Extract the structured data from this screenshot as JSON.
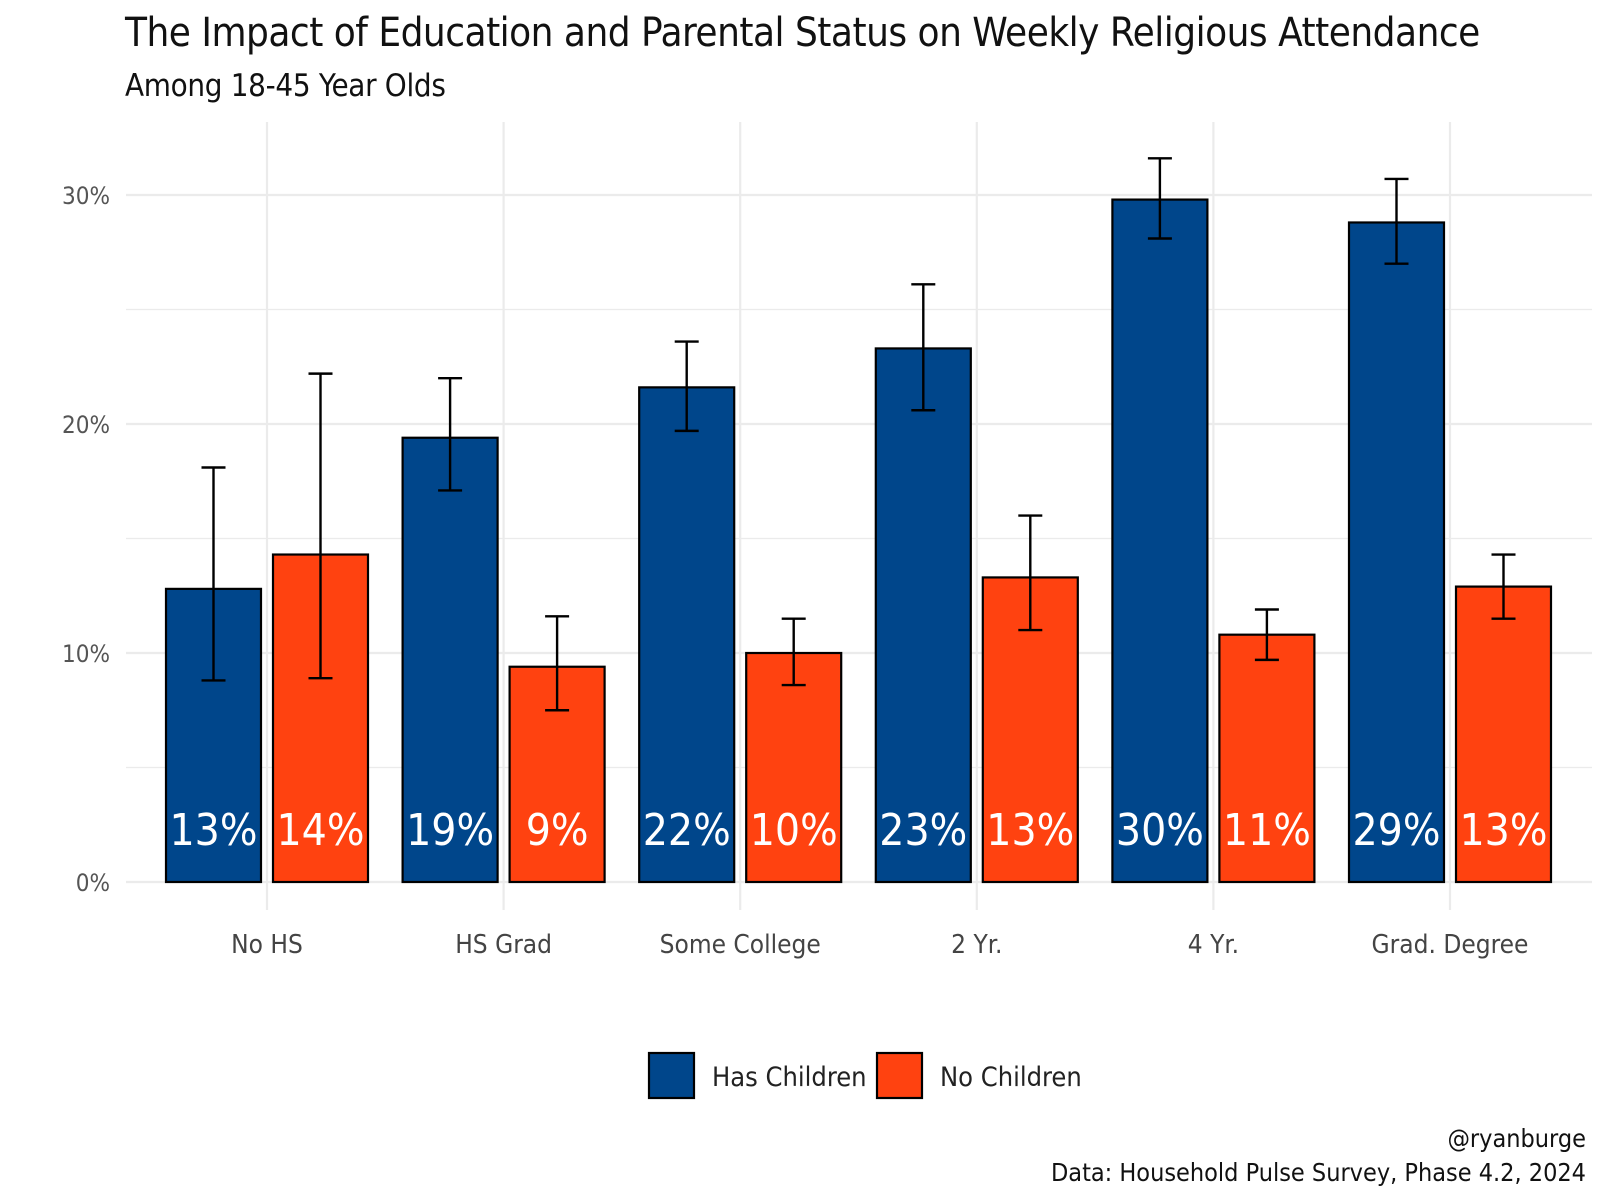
{
  "title": "The Impact of Education and Parental Status on Weekly Religious Attendance",
  "subtitle": "Among 18-45 Year Olds",
  "caption": {
    "handle": "@ryanburge",
    "source": "Data: Household Pulse Survey, Phase 4.2, 2024"
  },
  "colors": {
    "has_children": "#00468B",
    "no_children": "#FF4210",
    "grid": "#EBEBEB",
    "bar_outline": "#000000"
  },
  "chart_data": {
    "type": "bar",
    "categories": [
      "No HS",
      "HS Grad",
      "Some College",
      "2 Yr.",
      "4 Yr.",
      "Grad. Degree"
    ],
    "series": [
      {
        "name": "Has Children",
        "values": [
          12.8,
          19.4,
          21.6,
          23.3,
          29.8,
          28.8
        ],
        "labels": [
          "13%",
          "19%",
          "22%",
          "23%",
          "30%",
          "29%"
        ],
        "ci_low": [
          8.8,
          17.1,
          19.7,
          20.6,
          28.1,
          27.0
        ],
        "ci_high": [
          18.1,
          22.0,
          23.6,
          26.1,
          31.6,
          30.7
        ]
      },
      {
        "name": "No Children",
        "values": [
          14.3,
          9.4,
          10.0,
          13.3,
          10.8,
          12.9
        ],
        "labels": [
          "14%",
          "9%",
          "10%",
          "13%",
          "11%",
          "13%"
        ],
        "ci_low": [
          8.9,
          7.5,
          8.6,
          11.0,
          9.7,
          11.5
        ],
        "ci_high": [
          22.2,
          11.6,
          11.5,
          16.0,
          11.9,
          14.3
        ]
      }
    ],
    "ylim": [
      0,
      32
    ],
    "yticks": [
      0,
      10,
      20,
      30
    ],
    "ytick_labels": [
      "0%",
      "10%",
      "20%",
      "30%"
    ],
    "grid": true,
    "legend_position": "bottom"
  }
}
